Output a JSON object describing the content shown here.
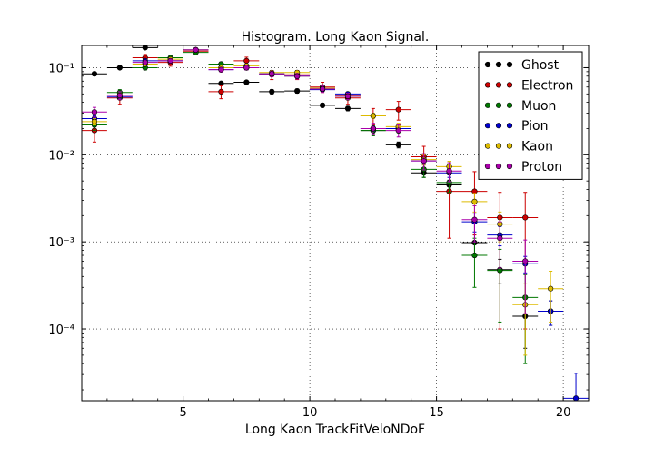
{
  "chart_data": {
    "type": "scatter",
    "title": "Histogram. Long Kaon Signal.",
    "xlabel": "Long Kaon TrackFitVeloNDoF",
    "ylabel": "",
    "xlim": [
      1,
      21
    ],
    "ylim": [
      1.5e-05,
      0.18
    ],
    "yscale": "log",
    "grid": true,
    "legend_position": "top-right",
    "x_ticks": [
      5,
      10,
      15,
      20
    ],
    "x_tick_labels": [
      "5",
      "10",
      "15",
      "20"
    ],
    "y_ticks": [
      0.0001,
      0.001,
      0.01,
      0.1
    ],
    "y_tick_labels": [
      "10⁻⁴",
      "10⁻³",
      "10⁻²",
      "10⁻¹"
    ],
    "series": [
      {
        "name": "Ghost",
        "color": "#000000",
        "points": [
          [
            1.5,
            0.085,
            0.004
          ],
          [
            2.5,
            0.1,
            0.004
          ],
          [
            3.5,
            0.17,
            0.005
          ],
          [
            4.5,
            0.12,
            0.004
          ],
          [
            5.5,
            0.16,
            0.005
          ],
          [
            6.5,
            0.066,
            0.003
          ],
          [
            7.5,
            0.068,
            0.003
          ],
          [
            8.5,
            0.053,
            0.003
          ],
          [
            9.5,
            0.054,
            0.003
          ],
          [
            10.5,
            0.037,
            0.002
          ],
          [
            11.5,
            0.034,
            0.002
          ],
          [
            12.5,
            0.019,
            0.0015
          ],
          [
            13.5,
            0.013,
            0.001
          ],
          [
            14.5,
            0.0062,
            0.0007
          ],
          [
            15.5,
            0.0045,
            0.0006
          ],
          [
            16.5,
            0.00098,
            0.00025
          ],
          [
            17.5,
            0.00048,
            0.00015
          ],
          [
            18.5,
            0.00014,
            8e-05
          ],
          [
            19.5,
            0.00016,
            5e-05
          ]
        ]
      },
      {
        "name": "Electron",
        "color": "#cc0000",
        "points": [
          [
            1.5,
            0.019,
            0.005
          ],
          [
            2.5,
            0.045,
            0.007
          ],
          [
            3.5,
            0.13,
            0.012
          ],
          [
            4.5,
            0.115,
            0.011
          ],
          [
            5.5,
            0.155,
            0.013
          ],
          [
            6.5,
            0.053,
            0.009
          ],
          [
            7.5,
            0.12,
            0.012
          ],
          [
            8.5,
            0.083,
            0.01
          ],
          [
            9.5,
            0.083,
            0.01
          ],
          [
            10.5,
            0.06,
            0.008
          ],
          [
            11.5,
            0.045,
            0.007
          ],
          [
            12.5,
            0.028,
            0.006
          ],
          [
            13.5,
            0.033,
            0.008
          ],
          [
            14.5,
            0.0095,
            0.003
          ],
          [
            15.5,
            0.0038,
            0.0027
          ],
          [
            16.5,
            0.0038,
            0.0026
          ],
          [
            17.5,
            0.0019,
            0.0018
          ],
          [
            18.5,
            0.0019,
            0.0018
          ]
        ]
      },
      {
        "name": "Muon",
        "color": "#007700",
        "points": [
          [
            1.5,
            0.022,
            0.003
          ],
          [
            2.5,
            0.052,
            0.004
          ],
          [
            3.5,
            0.1,
            0.006
          ],
          [
            4.5,
            0.13,
            0.007
          ],
          [
            5.5,
            0.15,
            0.007
          ],
          [
            6.5,
            0.11,
            0.006
          ],
          [
            7.5,
            0.1,
            0.006
          ],
          [
            8.5,
            0.085,
            0.005
          ],
          [
            9.5,
            0.08,
            0.005
          ],
          [
            10.5,
            0.058,
            0.004
          ],
          [
            11.5,
            0.047,
            0.004
          ],
          [
            12.5,
            0.019,
            0.0025
          ],
          [
            13.5,
            0.02,
            0.0025
          ],
          [
            14.5,
            0.0068,
            0.0013
          ],
          [
            15.5,
            0.0048,
            0.0011
          ],
          [
            16.5,
            0.0007,
            0.0004
          ],
          [
            17.5,
            0.00047,
            0.00035
          ],
          [
            18.5,
            0.00023,
            0.00019
          ]
        ]
      },
      {
        "name": "Pion",
        "color": "#0000cc",
        "points": [
          [
            1.5,
            0.026,
            0.002
          ],
          [
            2.5,
            0.046,
            0.002
          ],
          [
            3.5,
            0.12,
            0.004
          ],
          [
            4.5,
            0.12,
            0.004
          ],
          [
            5.5,
            0.16,
            0.004
          ],
          [
            6.5,
            0.095,
            0.003
          ],
          [
            7.5,
            0.1,
            0.003
          ],
          [
            8.5,
            0.085,
            0.003
          ],
          [
            9.5,
            0.082,
            0.003
          ],
          [
            10.5,
            0.056,
            0.002
          ],
          [
            11.5,
            0.05,
            0.002
          ],
          [
            12.5,
            0.02,
            0.0012
          ],
          [
            13.5,
            0.02,
            0.0012
          ],
          [
            14.5,
            0.0085,
            0.0008
          ],
          [
            15.5,
            0.0062,
            0.0007
          ],
          [
            16.5,
            0.0017,
            0.0004
          ],
          [
            17.5,
            0.0012,
            0.0003
          ],
          [
            18.5,
            0.00056,
            0.00012
          ],
          [
            19.5,
            0.00016,
            5e-05
          ],
          [
            20.5,
            1.6e-05,
            1.5e-05
          ]
        ]
      },
      {
        "name": "Kaon",
        "color": "#ddbb00",
        "points": [
          [
            1.5,
            0.024,
            0.002
          ],
          [
            2.5,
            0.048,
            0.003
          ],
          [
            3.5,
            0.11,
            0.004
          ],
          [
            4.5,
            0.125,
            0.004
          ],
          [
            5.5,
            0.16,
            0.005
          ],
          [
            6.5,
            0.1,
            0.004
          ],
          [
            7.5,
            0.105,
            0.004
          ],
          [
            8.5,
            0.088,
            0.004
          ],
          [
            9.5,
            0.088,
            0.004
          ],
          [
            10.5,
            0.058,
            0.003
          ],
          [
            11.5,
            0.048,
            0.003
          ],
          [
            12.5,
            0.028,
            0.002
          ],
          [
            13.5,
            0.021,
            0.002
          ],
          [
            14.5,
            0.0088,
            0.0012
          ],
          [
            15.5,
            0.0073,
            0.0011
          ],
          [
            16.5,
            0.0029,
            0.0007
          ],
          [
            17.5,
            0.0016,
            0.0006
          ],
          [
            18.5,
            0.00019,
            0.00014
          ],
          [
            19.5,
            0.00029,
            0.00017
          ]
        ]
      },
      {
        "name": "Proton",
        "color": "#aa00aa",
        "points": [
          [
            1.5,
            0.031,
            0.004
          ],
          [
            2.5,
            0.048,
            0.005
          ],
          [
            3.5,
            0.115,
            0.007
          ],
          [
            4.5,
            0.12,
            0.007
          ],
          [
            5.5,
            0.16,
            0.008
          ],
          [
            6.5,
            0.095,
            0.006
          ],
          [
            7.5,
            0.1,
            0.006
          ],
          [
            8.5,
            0.085,
            0.006
          ],
          [
            9.5,
            0.08,
            0.006
          ],
          [
            10.5,
            0.057,
            0.005
          ],
          [
            11.5,
            0.047,
            0.004
          ],
          [
            12.5,
            0.02,
            0.003
          ],
          [
            13.5,
            0.019,
            0.003
          ],
          [
            14.5,
            0.0085,
            0.0018
          ],
          [
            15.5,
            0.0065,
            0.0016
          ],
          [
            16.5,
            0.0018,
            0.0008
          ],
          [
            17.5,
            0.0011,
            0.0006
          ],
          [
            18.5,
            0.0006,
            0.00045
          ]
        ]
      }
    ]
  }
}
